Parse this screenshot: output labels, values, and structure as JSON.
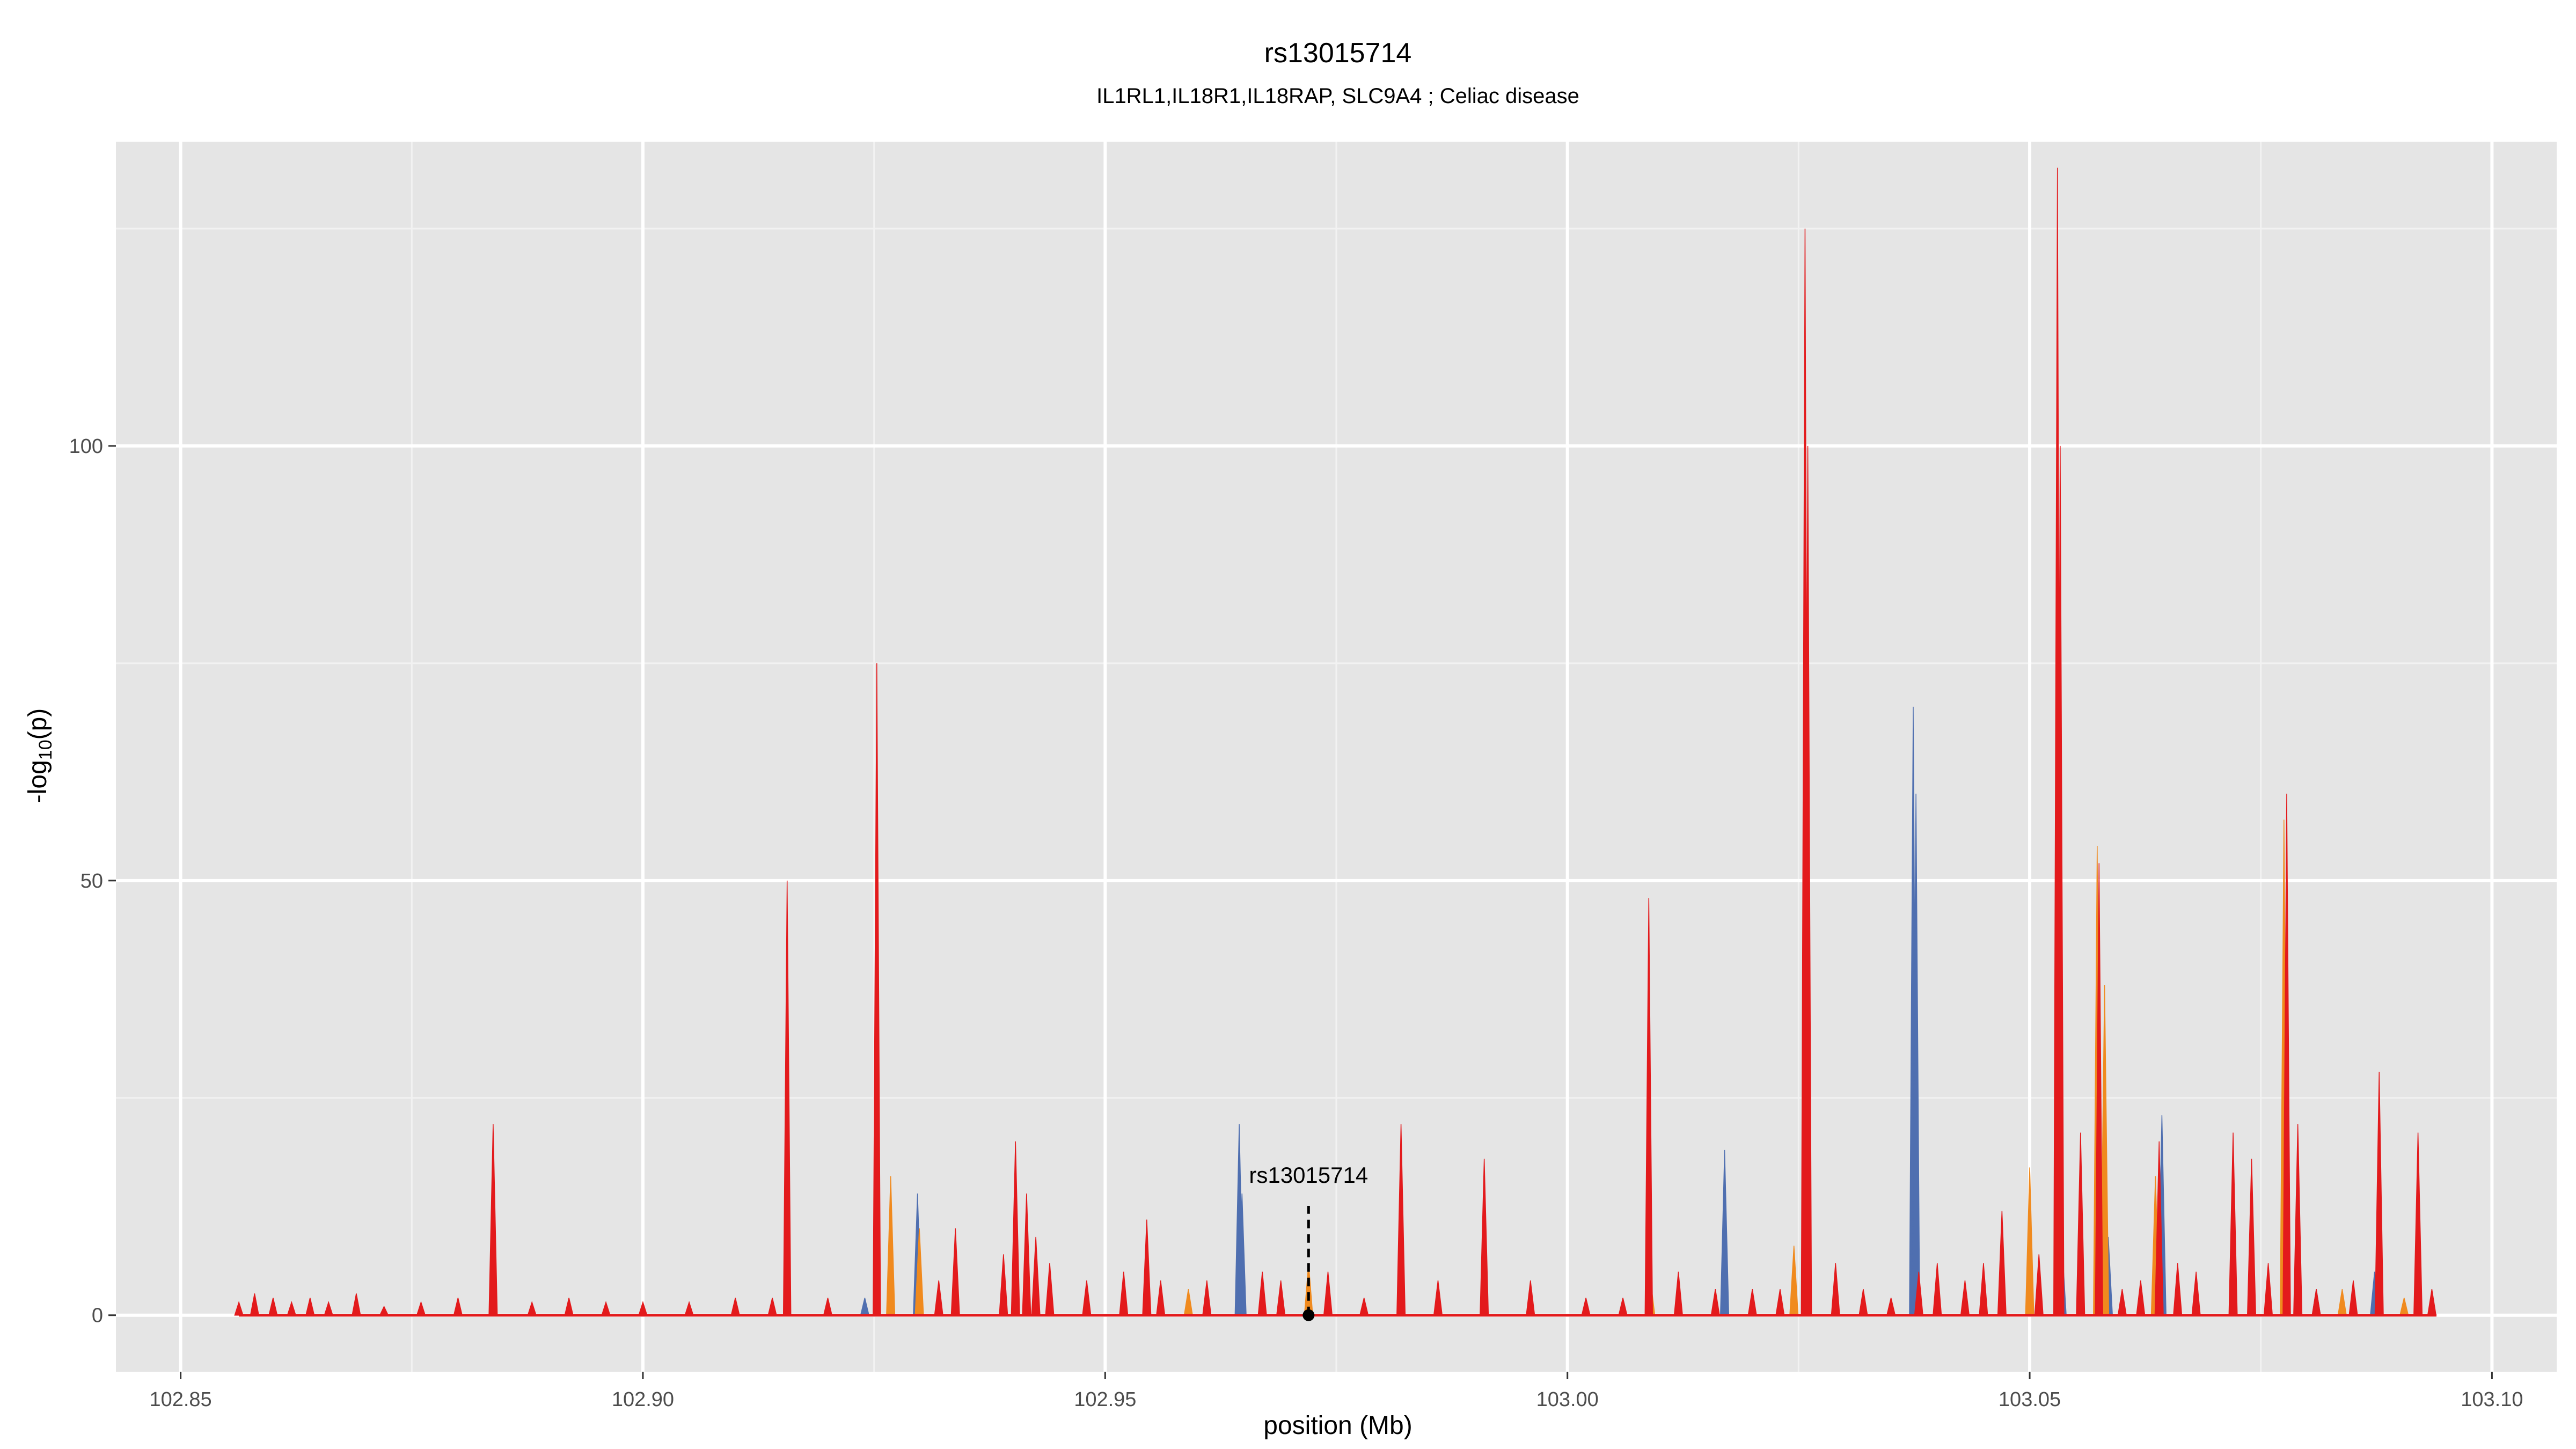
{
  "chart_data": {
    "type": "area",
    "title": "rs13015714",
    "subtitle": "IL1RL1,IL18R1,IL18RAP, SLC9A4 ; Celiac disease",
    "xlabel": "position (Mb)",
    "ylabel": "-log10(p)",
    "xlim": [
      102.843,
      103.107
    ],
    "ylim": [
      -6.5,
      135
    ],
    "grid": true,
    "legend": "none",
    "x_ticks": [
      {
        "value": 102.85,
        "label": "102.85"
      },
      {
        "value": 102.9,
        "label": "102.90"
      },
      {
        "value": 102.95,
        "label": "102.95"
      },
      {
        "value": 103.0,
        "label": "103.00"
      },
      {
        "value": 103.05,
        "label": "103.05"
      },
      {
        "value": 103.1,
        "label": "103.10"
      }
    ],
    "y_ticks": [
      {
        "value": 0,
        "label": "0"
      },
      {
        "value": 50,
        "label": "50"
      },
      {
        "value": 100,
        "label": "100"
      }
    ],
    "annotation": {
      "label": "rs13015714",
      "x": 102.972,
      "y": 0
    },
    "series": [
      {
        "color": "#4f6fb0",
        "peaks": [
          [
            102.9645,
            22
          ],
          [
            102.9648,
            14
          ],
          [
            103.017,
            19
          ],
          [
            103.0374,
            70
          ],
          [
            103.0377,
            60
          ],
          [
            103.0535,
            8
          ],
          [
            103.0585,
            9
          ],
          [
            103.0643,
            23
          ],
          [
            103.0873,
            5
          ],
          [
            102.9297,
            14
          ],
          [
            102.924,
            2
          ],
          [
            102.986,
            3
          ],
          [
            103.081,
            3
          ]
        ]
      },
      {
        "color": "#f08a1e",
        "peaks": [
          [
            102.9268,
            16
          ],
          [
            102.9299,
            10
          ],
          [
            102.972,
            6
          ],
          [
            103.0245,
            8
          ],
          [
            103.05,
            17
          ],
          [
            103.0573,
            54
          ],
          [
            103.0581,
            38
          ],
          [
            103.0636,
            16
          ],
          [
            103.0775,
            57
          ],
          [
            103.0838,
            3
          ],
          [
            103.0905,
            2
          ],
          [
            102.959,
            3
          ],
          [
            103.009,
            4
          ]
        ]
      },
      {
        "color": "#e31a1c",
        "peaks": [
          [
            102.8563,
            1.5
          ],
          [
            102.858,
            2.5
          ],
          [
            102.86,
            2
          ],
          [
            102.862,
            1.5
          ],
          [
            102.864,
            2
          ],
          [
            102.866,
            1.5
          ],
          [
            102.869,
            2.5
          ],
          [
            102.872,
            1
          ],
          [
            102.876,
            1.5
          ],
          [
            102.88,
            2
          ],
          [
            102.8838,
            22
          ],
          [
            102.888,
            1.5
          ],
          [
            102.892,
            2
          ],
          [
            102.896,
            1.5
          ],
          [
            102.9,
            1.5
          ],
          [
            102.905,
            1.5
          ],
          [
            102.91,
            2
          ],
          [
            102.914,
            2
          ],
          [
            102.9156,
            50
          ],
          [
            102.92,
            2
          ],
          [
            102.9253,
            75
          ],
          [
            102.932,
            4
          ],
          [
            102.9338,
            10
          ],
          [
            102.939,
            7
          ],
          [
            102.9403,
            20
          ],
          [
            102.9415,
            14
          ],
          [
            102.9425,
            9
          ],
          [
            102.944,
            6
          ],
          [
            102.948,
            4
          ],
          [
            102.952,
            5
          ],
          [
            102.9545,
            11
          ],
          [
            102.956,
            4
          ],
          [
            102.961,
            4
          ],
          [
            102.967,
            5
          ],
          [
            102.969,
            4
          ],
          [
            102.9741,
            5
          ],
          [
            102.978,
            2
          ],
          [
            102.982,
            22
          ],
          [
            102.986,
            4
          ],
          [
            102.991,
            18
          ],
          [
            102.996,
            4
          ],
          [
            103.002,
            2
          ],
          [
            103.006,
            2
          ],
          [
            103.0088,
            48
          ],
          [
            103.012,
            5
          ],
          [
            103.016,
            3
          ],
          [
            103.02,
            3
          ],
          [
            103.023,
            3
          ],
          [
            103.0257,
            125
          ],
          [
            103.026,
            100
          ],
          [
            103.029,
            6
          ],
          [
            103.032,
            3
          ],
          [
            103.035,
            2
          ],
          [
            103.038,
            5
          ],
          [
            103.04,
            6
          ],
          [
            103.043,
            4
          ],
          [
            103.045,
            6
          ],
          [
            103.047,
            12
          ],
          [
            103.051,
            7
          ],
          [
            103.053,
            132
          ],
          [
            103.0533,
            100
          ],
          [
            103.0555,
            21
          ],
          [
            103.0575,
            52
          ],
          [
            103.06,
            3
          ],
          [
            103.062,
            4
          ],
          [
            103.064,
            20
          ],
          [
            103.066,
            6
          ],
          [
            103.068,
            5
          ],
          [
            103.072,
            21
          ],
          [
            103.074,
            18
          ],
          [
            103.0758,
            6
          ],
          [
            103.0778,
            60
          ],
          [
            103.079,
            22
          ],
          [
            103.081,
            3
          ],
          [
            103.085,
            4
          ],
          [
            103.0878,
            28
          ],
          [
            103.092,
            21
          ],
          [
            103.0935,
            3
          ]
        ]
      }
    ]
  }
}
